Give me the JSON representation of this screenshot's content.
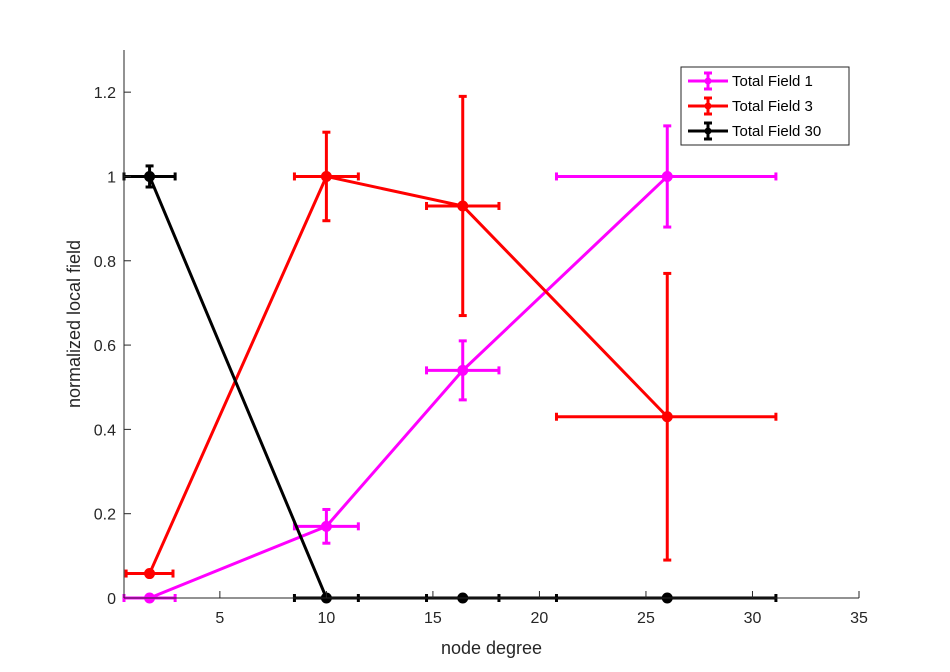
{
  "chart_data": {
    "type": "line",
    "title": "",
    "xlabel": "node degree",
    "ylabel": "normalized local field",
    "xlim": [
      0.5,
      35
    ],
    "ylim": [
      0,
      1.3
    ],
    "xticks": [
      5,
      10,
      15,
      20,
      25,
      30,
      35
    ],
    "yticks": [
      0,
      0.2,
      0.4,
      0.6,
      0.8,
      1,
      1.2
    ],
    "xtick_labels": [
      "5",
      "10",
      "15",
      "20",
      "25",
      "30",
      "35"
    ],
    "ytick_labels": [
      "0",
      "0.2",
      "0.4",
      "0.6",
      "0.8",
      "1",
      "1.2"
    ],
    "grid": false,
    "legend_position": "top-right",
    "error_bars": "both x and y",
    "series": [
      {
        "name": "Total Field 1",
        "color": "#ff00ff",
        "points": [
          {
            "x": 1.7,
            "y": 0.0,
            "xneg": 1.2,
            "xpos": 1.2,
            "yneg": 0.0,
            "ypos": 0.0
          },
          {
            "x": 10.0,
            "y": 0.17,
            "xneg": 1.5,
            "xpos": 1.5,
            "yneg": 0.04,
            "ypos": 0.04
          },
          {
            "x": 16.4,
            "y": 0.54,
            "xneg": 1.7,
            "xpos": 1.7,
            "yneg": 0.07,
            "ypos": 0.07
          },
          {
            "x": 26.0,
            "y": 1.0,
            "xneg": 5.2,
            "xpos": 5.1,
            "yneg": 0.12,
            "ypos": 0.12
          }
        ]
      },
      {
        "name": "Total Field 3",
        "color": "#ff0000",
        "points": [
          {
            "x": 1.7,
            "y": 0.058,
            "xneg": 1.1,
            "xpos": 1.1,
            "yneg": 0.0,
            "ypos": 0.0
          },
          {
            "x": 10.0,
            "y": 1.0,
            "xneg": 1.5,
            "xpos": 1.5,
            "yneg": 0.105,
            "ypos": 0.105
          },
          {
            "x": 16.4,
            "y": 0.93,
            "xneg": 1.7,
            "xpos": 1.7,
            "yneg": 0.26,
            "ypos": 0.26
          },
          {
            "x": 26.0,
            "y": 0.43,
            "xneg": 5.2,
            "xpos": 5.1,
            "yneg": 0.34,
            "ypos": 0.34
          }
        ]
      },
      {
        "name": "Total Field 30",
        "color": "#000000",
        "points": [
          {
            "x": 1.7,
            "y": 1.0,
            "xneg": 1.2,
            "xpos": 1.2,
            "yneg": 0.025,
            "ypos": 0.025
          },
          {
            "x": 10.0,
            "y": 0.0,
            "xneg": 1.5,
            "xpos": 1.5,
            "yneg": 0.0,
            "ypos": 0.0
          },
          {
            "x": 16.4,
            "y": 0.0,
            "xneg": 1.7,
            "xpos": 1.7,
            "yneg": 0.0,
            "ypos": 0.0
          },
          {
            "x": 26.0,
            "y": 0.0,
            "xneg": 5.2,
            "xpos": 5.1,
            "yneg": 0.0,
            "ypos": 0.0
          }
        ]
      }
    ]
  }
}
